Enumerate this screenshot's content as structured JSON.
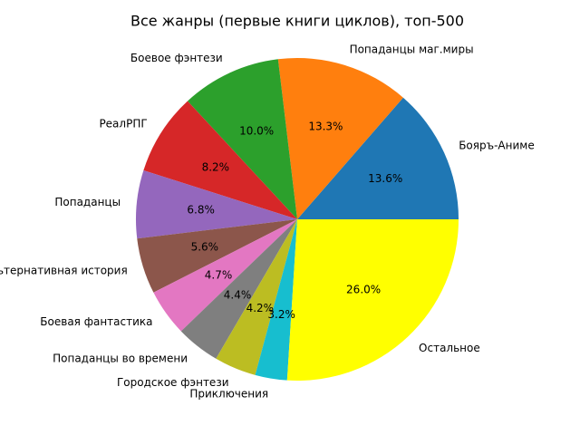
{
  "chart_data": {
    "type": "pie",
    "title": "Все жанры (первые книги циклов), топ-500",
    "categories": [
      "Бояръ-Аниме",
      "Попаданцы маг.миры",
      "Боевое фэнтези",
      "РеалРПГ",
      "Попаданцы",
      "Альтернативная история",
      "Боевая фантастика",
      "Попаданцы во времени",
      "Городское фэнтези",
      "Приключения",
      "Остальное"
    ],
    "values": [
      13.6,
      13.3,
      10.0,
      8.2,
      6.8,
      5.6,
      4.7,
      4.4,
      4.2,
      3.2,
      26.0
    ],
    "value_labels": [
      "13.6%",
      "13.3%",
      "10.0%",
      "8.2%",
      "6.8%",
      "5.6%",
      "4.7%",
      "4.4%",
      "4.2%",
      "3.2%",
      "26.0%"
    ],
    "colors": [
      "#1f77b4",
      "#ff7f0e",
      "#2ca02c",
      "#d62728",
      "#9467bd",
      "#8c564b",
      "#e377c2",
      "#7f7f7f",
      "#bcbd22",
      "#17becf",
      "#ffff00"
    ]
  }
}
